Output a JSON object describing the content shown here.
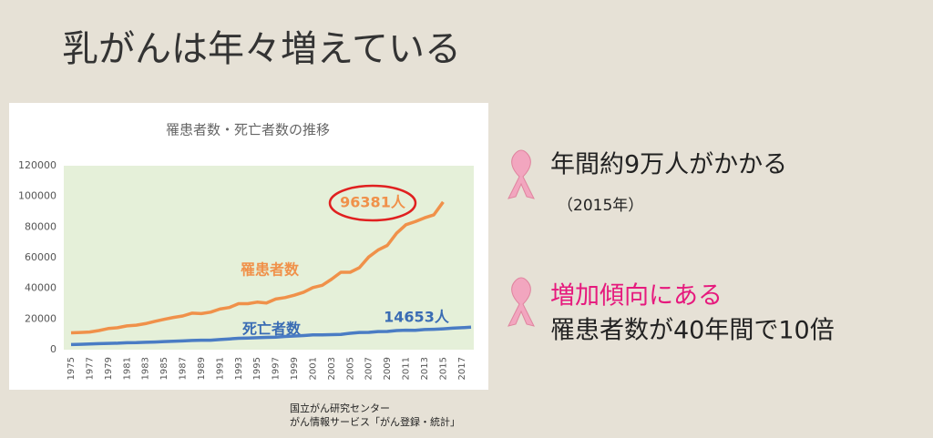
{
  "slide_title": "乳がんは年々増えている",
  "points": [
    {
      "text": "年間約9万人がかかる",
      "note": "（2015年）"
    },
    {
      "text": "増加傾向にある",
      "note": "罹患者数が40年間で10倍"
    }
  ],
  "source": [
    "国立がん研究センター",
    "がん情報サービス「がん登録・統計」"
  ],
  "chart_data": {
    "type": "line",
    "title": "罹患者数・死亡者数の推移",
    "x": [
      1975,
      1976,
      1977,
      1978,
      1979,
      1980,
      1981,
      1982,
      1983,
      1984,
      1985,
      1986,
      1987,
      1988,
      1989,
      1990,
      1991,
      1992,
      1993,
      1994,
      1995,
      1996,
      1997,
      1998,
      1999,
      2000,
      2001,
      2002,
      2003,
      2004,
      2005,
      2006,
      2007,
      2008,
      2009,
      2010,
      2011,
      2012,
      2013,
      2014,
      2015,
      2016,
      2017,
      2018
    ],
    "xlim": [
      1975,
      2018
    ],
    "xticks": [
      1975,
      1977,
      1979,
      1981,
      1983,
      1985,
      1987,
      1989,
      1991,
      1993,
      1995,
      1997,
      1999,
      2001,
      2003,
      2005,
      2007,
      2009,
      2011,
      2013,
      2015,
      2017
    ],
    "ylim": [
      0,
      120000
    ],
    "yticks": [
      0,
      20000,
      40000,
      60000,
      80000,
      100000,
      120000
    ],
    "grid": false,
    "series": [
      {
        "name": "罹患者数",
        "color": "#f0914a",
        "values": [
          11000,
          11200,
          11500,
          12500,
          13800,
          14300,
          15500,
          16000,
          17000,
          18500,
          19800,
          21000,
          22000,
          23800,
          23500,
          24500,
          26500,
          27500,
          30000,
          30000,
          31000,
          30500,
          33000,
          34000,
          35500,
          37500,
          40500,
          42000,
          46000,
          50500,
          50500,
          53500,
          60500,
          65000,
          68000,
          76000,
          81500,
          83500,
          86000,
          88000,
          96381,
          null,
          null,
          null
        ]
      },
      {
        "name": "死亡者数",
        "color": "#4a7cc4",
        "values": [
          3300,
          3500,
          3700,
          3900,
          4100,
          4200,
          4500,
          4600,
          4800,
          5000,
          5300,
          5500,
          5700,
          6000,
          6200,
          6200,
          6600,
          7000,
          7400,
          7600,
          7800,
          8000,
          8200,
          8600,
          8900,
          9200,
          9600,
          9700,
          9800,
          10000,
          10700,
          11200,
          11300,
          11800,
          11900,
          12500,
          12700,
          12600,
          13100,
          13300,
          13600,
          14000,
          14300,
          14653
        ]
      }
    ],
    "annotations": [
      "96381人",
      "14653人"
    ]
  }
}
